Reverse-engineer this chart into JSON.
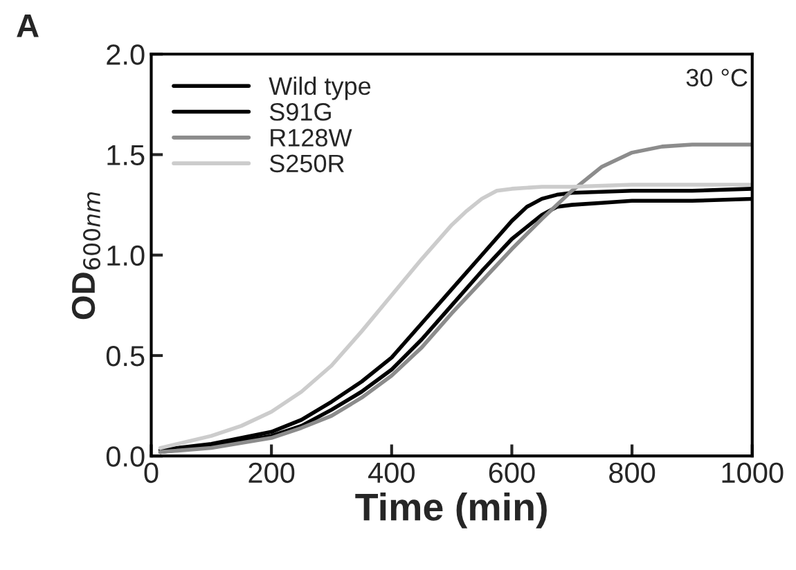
{
  "chart_data": {
    "type": "line",
    "xlabel": "Time (min)",
    "ylabel": "OD$_{600nm}$",
    "annotations": [
      "A",
      "30 °C"
    ],
    "xlim": [
      0,
      1000
    ],
    "xticks": [
      0,
      200,
      400,
      600,
      800,
      1000
    ],
    "ylim": [
      0,
      2.0
    ],
    "yticks": [
      {
        "value": 0,
        "label": "0.0"
      },
      {
        "value": 0.5,
        "label": "0.5"
      },
      {
        "value": 1.0,
        "label": "1.0"
      },
      {
        "value": 1.5,
        "label": "1.5"
      },
      {
        "value": 2.0,
        "label": "2.0"
      }
    ],
    "grid": false,
    "legend": "top left",
    "line_style": "solid",
    "marker": "none",
    "series": [
      {
        "name": "Wild type",
        "color": "#000000",
        "x": [
          15,
          100,
          200,
          250,
          300,
          350,
          400,
          450,
          500,
          550,
          600,
          625,
          650,
          675,
          700,
          800,
          900,
          1000
        ],
        "values": [
          0.03,
          0.06,
          0.12,
          0.18,
          0.27,
          0.37,
          0.49,
          0.66,
          0.83,
          1.0,
          1.17,
          1.24,
          1.28,
          1.3,
          1.31,
          1.32,
          1.32,
          1.33
        ]
      },
      {
        "name": "S91G",
        "color": "#000000",
        "x": [
          15,
          100,
          200,
          250,
          300,
          350,
          400,
          450,
          500,
          550,
          600,
          650,
          675,
          700,
          750,
          800,
          900,
          1000
        ],
        "values": [
          0.02,
          0.05,
          0.1,
          0.15,
          0.23,
          0.32,
          0.43,
          0.58,
          0.75,
          0.92,
          1.08,
          1.2,
          1.24,
          1.25,
          1.26,
          1.27,
          1.27,
          1.28
        ]
      },
      {
        "name": "R128W",
        "color": "#8c8c8c",
        "x": [
          15,
          100,
          200,
          250,
          300,
          350,
          400,
          450,
          500,
          550,
          600,
          650,
          700,
          750,
          800,
          850,
          900,
          1000
        ],
        "values": [
          0.02,
          0.04,
          0.09,
          0.14,
          0.2,
          0.29,
          0.4,
          0.54,
          0.71,
          0.87,
          1.03,
          1.18,
          1.32,
          1.44,
          1.51,
          1.54,
          1.55,
          1.55
        ]
      },
      {
        "name": "S250R",
        "color": "#cccccc",
        "x": [
          15,
          100,
          150,
          200,
          250,
          300,
          350,
          400,
          450,
          500,
          525,
          550,
          575,
          600,
          650,
          700,
          800,
          1000
        ],
        "values": [
          0.04,
          0.1,
          0.15,
          0.22,
          0.32,
          0.45,
          0.62,
          0.8,
          0.98,
          1.15,
          1.22,
          1.28,
          1.32,
          1.33,
          1.34,
          1.34,
          1.35,
          1.35
        ]
      }
    ]
  }
}
